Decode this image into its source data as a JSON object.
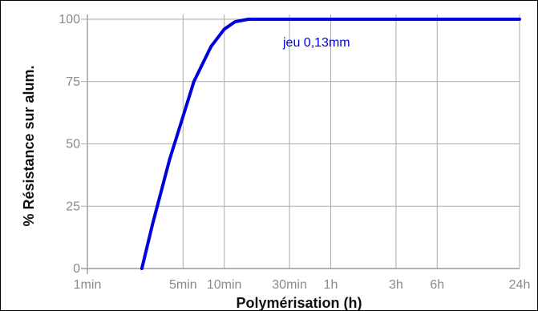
{
  "chart_data": {
    "type": "line",
    "title": "",
    "xlabel": "Polymérisation (h)",
    "ylabel": "% Résistance sur alum.",
    "x_scale": "log",
    "x_tick_values": [
      "1min",
      "5min",
      "10min",
      "30min",
      "1h",
      "3h",
      "6h",
      "24h"
    ],
    "y_ticks": [
      0,
      25,
      50,
      75,
      100
    ],
    "ylim": [
      0,
      100
    ],
    "grid": true,
    "legend": "none",
    "annotations": [
      {
        "text": "jeu 0,13mm"
      }
    ],
    "series": [
      {
        "x": [
          "2.5min",
          "3min",
          "4min",
          "5min",
          "6min",
          "8min",
          "10min",
          "12min",
          "15min",
          "30min",
          "1h",
          "3h",
          "6h",
          "24h"
        ],
        "values": [
          0,
          18,
          44,
          61,
          75,
          89,
          96,
          99,
          100,
          100,
          100,
          100,
          100,
          100
        ]
      }
    ]
  },
  "colors": {
    "series": "#0000dd",
    "annotation": "#0000dd",
    "grid": "#aaaaaa",
    "frame": "#000000",
    "axis_line": "#9a9a9a"
  }
}
